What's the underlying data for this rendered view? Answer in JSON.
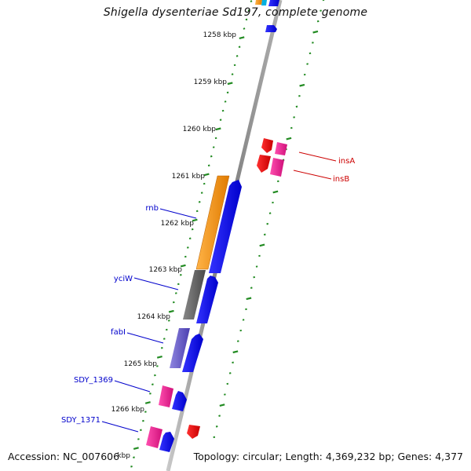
{
  "title": "Shigella dysenteriae Sd197, complete genome",
  "accession": {
    "label": "Accession:",
    "value": "NC_007606"
  },
  "topology": {
    "label": "Topology:",
    "value": "circular"
  },
  "length": {
    "label": "Length:",
    "value": "4,369,232 bp"
  },
  "genes": {
    "label": "Genes:",
    "value": "4,377"
  },
  "kbp_ticks": [
    "1258 kbp",
    "1259 kbp",
    "1260 kbp",
    "1261 kbp",
    "1262 kbp",
    "1263 kbp",
    "1264 kbp",
    "1265 kbp",
    "1266 kbp"
  ],
  "trailing_tick_fragment": "kbp",
  "gene_labels": [
    {
      "name": "rnb",
      "color": "#0000cc"
    },
    {
      "name": "yciW",
      "color": "#0000cc"
    },
    {
      "name": "fabI",
      "color": "#0000cc"
    },
    {
      "name": "SDY_1369",
      "color": "#0000cc"
    },
    {
      "name": "SDY_1371",
      "color": "#0000cc"
    },
    {
      "name": "insA",
      "color": "#cc0000"
    },
    {
      "name": "insB",
      "color": "#cc0000"
    }
  ],
  "colors": {
    "backbone": "#8a8a8a",
    "tick_dots": "#228b22",
    "blue_feature": "#0000ee",
    "orange_feature": "#ff8c00",
    "gray_feature": "#666666",
    "purple_feature": "#6a5acd",
    "pink_feature": "#ee1493",
    "red_feature": "#ee0000",
    "label_blue": "#0000cc",
    "label_red": "#cc0000"
  }
}
